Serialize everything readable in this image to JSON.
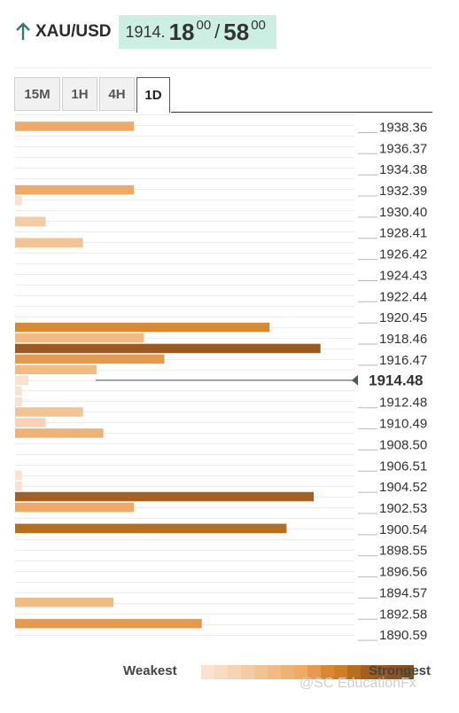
{
  "header": {
    "symbol": "XAU/USD",
    "price_base": "1914.",
    "price_bid_big": "18",
    "price_bid_small": "00",
    "separator": "/",
    "price_ask_big": "58",
    "price_ask_small": "00",
    "arrow_icon": "arrow-up-icon"
  },
  "tabs": [
    {
      "label": "15M",
      "active": false
    },
    {
      "label": "1H",
      "active": false
    },
    {
      "label": "4H",
      "active": false
    },
    {
      "label": "1D",
      "active": true
    }
  ],
  "legend": {
    "weak_label": "Weakest",
    "strong_label": "Strongest",
    "scale_colors": [
      "#fbe2cf",
      "#f8dbc0",
      "#f6d3b2",
      "#f4cba2",
      "#f3c393",
      "#f1bb84",
      "#efb275",
      "#eeaa66",
      "#e59b4e",
      "#d9892f",
      "#cf7f22",
      "#b86e1f",
      "#a55f20",
      "#9a5a20",
      "#8e531e",
      "#845019"
    ]
  },
  "watermark": "@SC EducationFx",
  "colors": {
    "price_box": "#cdeee3",
    "arrow": "#2f7d63",
    "gridline": "#e6e6e6",
    "current_line": "#4a5968"
  },
  "chart_data": {
    "type": "bar",
    "orientation": "horizontal",
    "x_scale": "strength 0–100 (relative)",
    "y_ticks": [
      "1938.36",
      "1936.37",
      "1934.38",
      "1932.39",
      "1930.40",
      "1928.41",
      "1926.42",
      "1924.43",
      "1922.44",
      "1920.45",
      "1918.46",
      "1916.47",
      "1914.48",
      "1912.48",
      "1910.49",
      "1908.50",
      "1906.51",
      "1904.52",
      "1902.53",
      "1900.54",
      "1898.55",
      "1896.56",
      "1894.57",
      "1892.58",
      "1890.59"
    ],
    "ylim": [
      1889.6,
      1939.4
    ],
    "current_price": {
      "value": 1914.48,
      "label": "1914.48"
    },
    "bars": [
      {
        "price": 1938.36,
        "strength": 35,
        "color": "#eeaa66"
      },
      {
        "price": 1932.39,
        "strength": 35,
        "color": "#eeaa66"
      },
      {
        "price": 1931.39,
        "strength": 2,
        "color": "#fbe2cf"
      },
      {
        "price": 1929.41,
        "strength": 9,
        "color": "#f4cba2"
      },
      {
        "price": 1927.42,
        "strength": 20,
        "color": "#f3c393"
      },
      {
        "price": 1919.46,
        "strength": 75,
        "color": "#d9892f"
      },
      {
        "price": 1918.46,
        "strength": 38,
        "color": "#f1bb84"
      },
      {
        "price": 1917.47,
        "strength": 90,
        "color": "#9a5a20"
      },
      {
        "price": 1916.47,
        "strength": 44,
        "color": "#e59b4e"
      },
      {
        "price": 1915.48,
        "strength": 24,
        "color": "#f1bb84"
      },
      {
        "price": 1914.48,
        "strength": 4,
        "color": "#fbe2cf"
      },
      {
        "price": 1913.48,
        "strength": 2,
        "color": "#fbe2cf"
      },
      {
        "price": 1912.48,
        "strength": 2,
        "color": "#fbe2cf"
      },
      {
        "price": 1911.49,
        "strength": 20,
        "color": "#f3c393"
      },
      {
        "price": 1910.49,
        "strength": 9,
        "color": "#f6d3b2"
      },
      {
        "price": 1909.5,
        "strength": 26,
        "color": "#efb275"
      },
      {
        "price": 1905.52,
        "strength": 2,
        "color": "#fbe2cf"
      },
      {
        "price": 1904.52,
        "strength": 2,
        "color": "#fbe2cf"
      },
      {
        "price": 1903.53,
        "strength": 88,
        "color": "#a55f20"
      },
      {
        "price": 1902.53,
        "strength": 35,
        "color": "#eeaa66"
      },
      {
        "price": 1900.54,
        "strength": 80,
        "color": "#b86e1f"
      },
      {
        "price": 1893.58,
        "strength": 29,
        "color": "#f1bb84"
      },
      {
        "price": 1891.59,
        "strength": 55,
        "color": "#e59b4e"
      }
    ]
  }
}
